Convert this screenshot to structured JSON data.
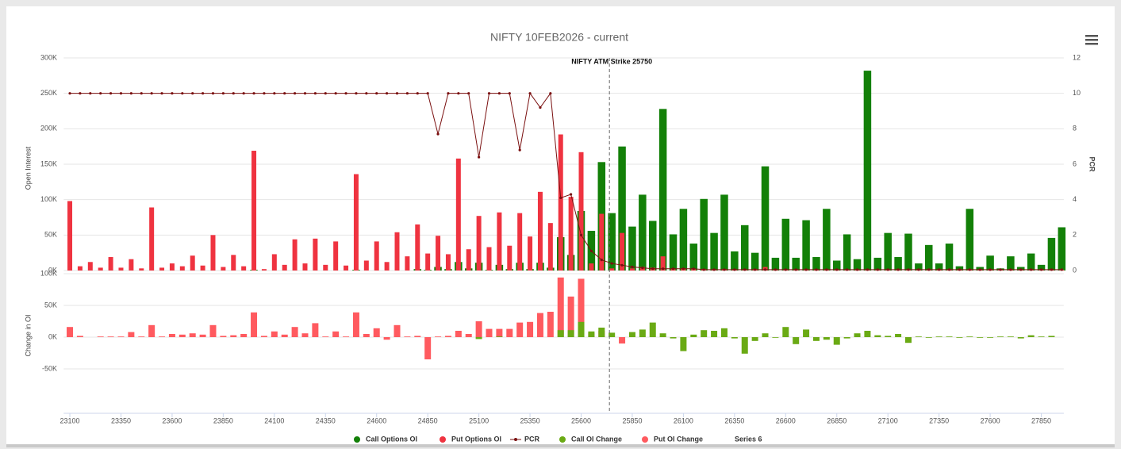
{
  "chart_data": [
    {
      "type": "bar",
      "title": "NIFTY 10FEB2026 - current",
      "y_label": "Open Interest",
      "y2_label": "PCR",
      "plot_line": {
        "value": 25750,
        "label": "NIFTY ATM Strike 25750"
      },
      "ylim": [
        0,
        300000
      ],
      "yticks": [
        {
          "value": 0,
          "label": "0K"
        },
        {
          "value": 50000,
          "label": "50K"
        },
        {
          "value": 100000,
          "label": "100K"
        },
        {
          "value": 150000,
          "label": "150K"
        },
        {
          "value": 200000,
          "label": "200K"
        },
        {
          "value": 250000,
          "label": "250K"
        },
        {
          "value": 300000,
          "label": "300K"
        }
      ],
      "y2lim": [
        0,
        12
      ],
      "y2ticks": [
        0,
        2,
        4,
        6,
        8,
        10,
        12
      ],
      "grid": true,
      "series": [
        {
          "name": "Call Options OI",
          "color": "#138008",
          "type": "bar",
          "values": [
            0,
            0,
            0,
            0,
            0,
            0,
            0,
            0,
            0,
            0,
            0,
            0,
            0,
            0,
            0,
            0,
            0,
            0,
            1000,
            0,
            0,
            0,
            0,
            0,
            0,
            0,
            0,
            0,
            1000,
            0,
            0,
            0,
            0,
            0,
            2000,
            1000,
            5000,
            2000,
            12000,
            3000,
            11000,
            1000,
            8000,
            2000,
            11000,
            2000,
            11000,
            4000,
            47000,
            22000,
            84000,
            56000,
            153000,
            81000,
            175000,
            62000,
            107000,
            70000,
            228000,
            51000,
            87000,
            38000,
            101000,
            53000,
            107000,
            27000,
            64000,
            25000,
            147000,
            18000,
            73000,
            18000,
            71000,
            19000,
            87000,
            14000,
            51000,
            16000,
            282000,
            18000,
            53000,
            19000,
            52000,
            10000,
            36000,
            10000,
            38000,
            6000,
            87000,
            5000,
            21000,
            3000,
            20000,
            5000,
            24000,
            8000,
            46000,
            61000
          ]
        },
        {
          "name": "Put Options OI",
          "color": "#ef3340",
          "type": "bar",
          "values": [
            98000,
            6000,
            12000,
            4000,
            19000,
            4000,
            16000,
            3000,
            89000,
            4000,
            10000,
            6000,
            21000,
            7000,
            50000,
            5000,
            22000,
            6000,
            169000,
            2000,
            23000,
            8000,
            44000,
            10000,
            45000,
            8000,
            41000,
            7000,
            136000,
            14000,
            41000,
            12000,
            54000,
            20000,
            65000,
            24000,
            49000,
            23000,
            158000,
            30000,
            77000,
            33000,
            82000,
            35000,
            81000,
            48000,
            111000,
            67000,
            192000,
            104000,
            167000,
            10000,
            80000,
            3000,
            53000,
            3000,
            5000,
            4000,
            20000,
            2000,
            3000,
            2000,
            2000,
            1000,
            2000,
            1000,
            1000,
            2000,
            5000,
            1000,
            1000,
            1000,
            1000,
            1000,
            1000,
            1000,
            1000,
            1000,
            1000,
            1000,
            1000,
            1000,
            1000,
            1000,
            1000,
            1000,
            1000,
            1000,
            1000,
            1000,
            1000,
            1000,
            1000,
            1000,
            1000,
            1000,
            1000,
            1000
          ]
        },
        {
          "name": "PCR",
          "color": "#7a1010",
          "type": "line",
          "axis": "y2",
          "values": [
            10,
            10,
            10,
            10,
            10,
            10,
            10,
            10,
            10,
            10,
            10,
            10,
            10,
            10,
            10,
            10,
            10,
            10,
            10,
            10,
            10,
            10,
            10,
            10,
            10,
            10,
            10,
            10,
            10,
            10,
            10,
            10,
            10,
            10,
            10,
            10,
            7.7,
            10,
            10,
            10,
            6.4,
            10,
            10,
            10,
            6.8,
            10,
            9.2,
            10,
            4.1,
            4.3,
            2,
            1.1,
            0.6,
            0.4,
            0.3,
            0.2,
            0.15,
            0.1,
            0.1,
            0.1,
            0.1,
            0.1,
            0.05,
            0.05,
            0.05,
            0.05,
            0.05,
            0.05,
            0.05,
            0.05,
            0.05,
            0.05,
            0.05,
            0.05,
            0.05,
            0.05,
            0.05,
            0.05,
            0.05,
            0.05,
            0.05,
            0.05,
            0.05,
            0.05,
            0.05,
            0.05,
            0.05,
            0.05,
            0.05,
            0.05,
            0.05,
            0.05,
            0.05,
            0.05,
            0.05,
            0.05,
            0.05,
            0.05
          ]
        }
      ]
    },
    {
      "type": "bar",
      "y_label": "Change in OI",
      "x": [
        23100,
        23150,
        23200,
        23250,
        23300,
        23350,
        23400,
        23450,
        23500,
        23550,
        23600,
        23650,
        23700,
        23750,
        23800,
        23850,
        23900,
        23950,
        24000,
        24050,
        24100,
        24150,
        24200,
        24250,
        24300,
        24350,
        24400,
        24450,
        24500,
        24550,
        24600,
        24650,
        24700,
        24750,
        24800,
        24850,
        24900,
        24950,
        25000,
        25050,
        25100,
        25150,
        25200,
        25250,
        25300,
        25350,
        25400,
        25450,
        25500,
        25550,
        25600,
        25650,
        25700,
        25750,
        25800,
        25850,
        25900,
        25950,
        26000,
        26050,
        26100,
        26150,
        26200,
        26250,
        26300,
        26350,
        26400,
        26450,
        26500,
        26550,
        26600,
        26650,
        26700,
        26750,
        26800,
        26850,
        26900,
        26950,
        27000,
        27050,
        27100,
        27150,
        27200,
        27250,
        27300,
        27350,
        27400,
        27450,
        27500,
        27550,
        27600,
        27650,
        27700,
        27750,
        27800,
        27850,
        27900,
        27950
      ],
      "xlim": [
        23070,
        27960
      ],
      "xticks": [
        23100,
        23350,
        23600,
        23850,
        24100,
        24350,
        24600,
        24850,
        25100,
        25350,
        25600,
        25850,
        26100,
        26350,
        26600,
        26850,
        27100,
        27350,
        27600,
        27850
      ],
      "ylim": [
        -120000,
        100000
      ],
      "yticks": [
        {
          "value": -50000,
          "label": "-50K"
        },
        {
          "value": 0,
          "label": "0K"
        },
        {
          "value": 50000,
          "label": "50K"
        },
        {
          "value": 100000,
          "label": "100K"
        }
      ],
      "grid": true,
      "series": [
        {
          "name": "Call OI Change",
          "color": "#6aaa14",
          "type": "bar",
          "values": [
            0,
            0,
            0,
            0,
            0,
            0,
            0,
            0,
            0,
            0,
            0,
            0,
            0,
            0,
            0,
            0,
            0,
            0,
            0,
            0,
            0,
            0,
            0,
            0,
            0,
            0,
            0,
            0,
            0,
            0,
            0,
            0,
            0,
            0,
            0,
            0,
            0,
            0,
            0,
            0,
            -3000,
            0,
            1000,
            0,
            0,
            0,
            0,
            0,
            11000,
            11000,
            24000,
            9000,
            15000,
            7000,
            0,
            8000,
            12000,
            23000,
            6000,
            -2000,
            -22000,
            4000,
            11000,
            10000,
            14000,
            -2000,
            -26000,
            -6000,
            6000,
            -1000,
            16000,
            -11000,
            12000,
            -6000,
            -4000,
            -12000,
            -2000,
            6000,
            10000,
            3000,
            2000,
            5000,
            -9000,
            1000,
            -1000,
            1000,
            1000,
            -1000,
            1000,
            -1000,
            -1000,
            1000,
            1000,
            -2000,
            3000,
            1000,
            2000,
            0
          ]
        },
        {
          "name": "Put OI Change",
          "color": "#ff5a5f",
          "type": "bar",
          "values": [
            16000,
            2000,
            0,
            1000,
            1000,
            1000,
            8000,
            1000,
            19000,
            1000,
            5000,
            4000,
            6000,
            4000,
            19000,
            2000,
            3000,
            5000,
            39000,
            2000,
            9000,
            4000,
            16000,
            6000,
            22000,
            1000,
            9000,
            1000,
            39000,
            5000,
            14000,
            -4000,
            19000,
            1000,
            2000,
            -35000,
            1000,
            2000,
            10000,
            5000,
            25000,
            13000,
            13000,
            13000,
            23000,
            24000,
            38000,
            40000,
            94000,
            64000,
            92000,
            6000,
            10000,
            0,
            -10000,
            1000,
            0,
            0,
            1000,
            0,
            0,
            0,
            0,
            0,
            0,
            0,
            0,
            0,
            0,
            0,
            0,
            0,
            0,
            0,
            0,
            0,
            0,
            0,
            0,
            0,
            0,
            0,
            0,
            0,
            0,
            0,
            0,
            0,
            0,
            0,
            0,
            0,
            0,
            0,
            0,
            0,
            0,
            0
          ]
        },
        {
          "name": "Series 6"
        }
      ]
    }
  ]
}
